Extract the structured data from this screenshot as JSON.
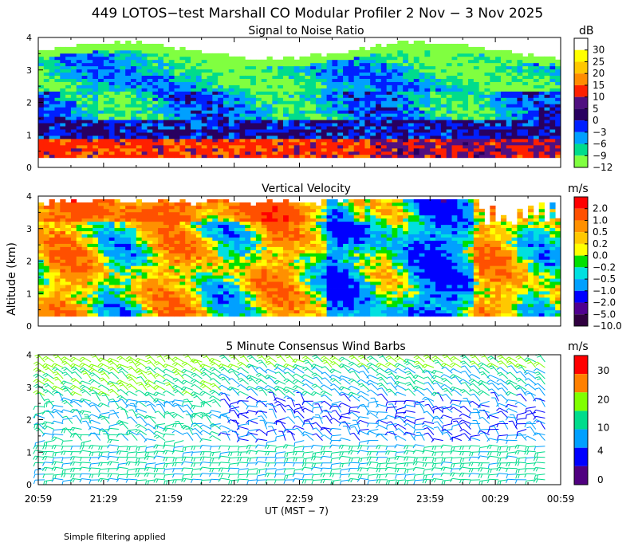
{
  "header": {
    "title": "449 LOTOS−test Marshall CO Modular Profiler  2 Nov −  3 Nov 2025"
  },
  "footer": {
    "note": "Simple filtering applied"
  },
  "colors": {
    "snr_scale": [
      "#ffffff",
      "#ffff00",
      "#ffc800",
      "#ff8c00",
      "#ff2000",
      "#501080",
      "#280060",
      "#0020ff",
      "#00a0ff",
      "#00dc8c",
      "#80ff40"
    ],
    "vel_scale": [
      "#ff0000",
      "#ff5000",
      "#ff9000",
      "#ffc800",
      "#ffff00",
      "#00e000",
      "#00e0e0",
      "#00a0ff",
      "#0000ff",
      "#500090",
      "#300040"
    ],
    "wind_scale": [
      "#ff0000",
      "#ff8000",
      "#80ff00",
      "#00dc8c",
      "#00a0ff",
      "#0000ff",
      "#500080"
    ]
  },
  "chart_data": [
    {
      "type": "heatmap",
      "title": "Signal to Noise Ratio",
      "units": "dB",
      "ylabel": "Altitude (km)",
      "ylim": [
        0,
        4
      ],
      "yticks": [
        "4",
        "3",
        "2",
        "1",
        "0"
      ],
      "xlim_ut": [
        "20:59",
        "00:59"
      ],
      "colorbar_labels": [
        "30",
        "25",
        "20",
        "15",
        "10",
        "5",
        "0",
        "−3",
        "−6",
        "−9",
        "−12"
      ],
      "data_altitude_range_km": [
        0.3,
        4.0
      ],
      "profile_mean_by_altitude": [
        {
          "alt_km": 0.5,
          "snr_db": 12
        },
        {
          "alt_km": 1.0,
          "snr_db": 5
        },
        {
          "alt_km": 1.5,
          "snr_db": 0
        },
        {
          "alt_km": 2.0,
          "snr_db": -3
        },
        {
          "alt_km": 2.5,
          "snr_db": -6
        },
        {
          "alt_km": 3.0,
          "snr_db": -3
        },
        {
          "alt_km": 3.5,
          "snr_db": -6
        },
        {
          "alt_km": 3.9,
          "snr_db": -12
        }
      ]
    },
    {
      "type": "heatmap",
      "title": "Vertical Velocity",
      "units": "m/s",
      "ylabel": "Altitude (km)",
      "ylim": [
        0,
        4
      ],
      "yticks": [
        "4",
        "3",
        "2",
        "1",
        "0"
      ],
      "xlim_ut": [
        "20:59",
        "00:59"
      ],
      "colorbar_labels": [
        "2.0",
        "1.0",
        "0.5",
        "0.2",
        "0.0",
        "−0.2",
        "−0.5",
        "−1.0",
        "−2.0",
        "−5.0",
        "−10.0"
      ],
      "data_altitude_range_km": [
        0.3,
        4.0
      ],
      "period_means": [
        {
          "ut": "21:00–22:59",
          "w_ms": 0.4
        },
        {
          "ut": "23:00–23:59",
          "w_ms": -0.5
        },
        {
          "ut": "00:00–00:59",
          "w_ms": -0.2
        }
      ]
    },
    {
      "type": "scatter",
      "subtype": "wind_barbs",
      "title": "5 Minute Consensus Wind Barbs",
      "units": "m/s",
      "ylabel": "Altitude (km)",
      "ylim": [
        0,
        4
      ],
      "yticks": [
        "4",
        "3",
        "2",
        "1",
        "0"
      ],
      "xlim_ut": [
        "20:59",
        "00:59"
      ],
      "colorbar_labels": [
        "30",
        "20",
        "10",
        "4",
        "0"
      ],
      "colorbar_bounds_ms": [
        0,
        2,
        4,
        7,
        10,
        20,
        30,
        35
      ],
      "speed_by_altitude": [
        {
          "alt_km": 0.5,
          "speed_ms": 8
        },
        {
          "alt_km": 1.0,
          "speed_ms": 7
        },
        {
          "alt_km": 2.0,
          "speed_ms": 4
        },
        {
          "alt_km": 3.0,
          "speed_ms": 6
        },
        {
          "alt_km": 3.8,
          "speed_ms": 12
        }
      ]
    }
  ],
  "xaxis": {
    "ticks": [
      "20:59",
      "21:29",
      "21:59",
      "22:29",
      "22:59",
      "23:29",
      "23:59",
      "00:29",
      "00:59"
    ],
    "label": "UT  (MST − 7)"
  },
  "ylabel": "Altitude (km)"
}
